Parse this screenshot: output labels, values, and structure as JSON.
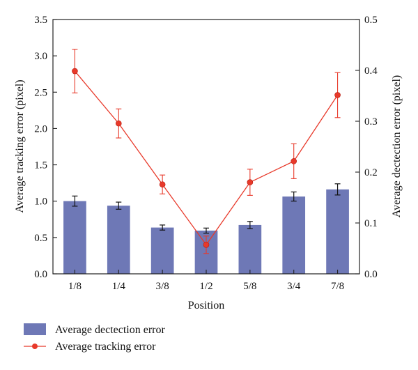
{
  "chart_data": {
    "type": "bar+line",
    "xlabel": "Position",
    "ylabel_left": "Average tracking error (pixel)",
    "ylabel_right": "Average dectection error (pixel)",
    "categories": [
      "1/8",
      "1/4",
      "3/8",
      "1/2",
      "5/8",
      "3/4",
      "7/8"
    ],
    "left_axis": {
      "ylim": [
        0.0,
        3.5
      ],
      "ticks": [
        "0.0",
        "0.5",
        "1.0",
        "1.5",
        "2.0",
        "2.5",
        "3.0",
        "3.5"
      ]
    },
    "right_axis": {
      "ylim": [
        0.0,
        0.5
      ],
      "ticks": [
        "0.0",
        "0.1",
        "0.2",
        "0.3",
        "0.4",
        "0.5"
      ]
    },
    "series": [
      {
        "name": "Average dectection error",
        "kind": "bar",
        "axis": "right",
        "color": "#6e78b6",
        "values": [
          0.143,
          0.134,
          0.091,
          0.085,
          0.096,
          0.152,
          0.166
        ],
        "errors": [
          0.01,
          0.007,
          0.005,
          0.005,
          0.007,
          0.009,
          0.011
        ]
      },
      {
        "name": "Average tracking error",
        "kind": "line",
        "axis": "left",
        "color": "#e8392a",
        "values": [
          2.79,
          2.07,
          1.23,
          0.4,
          1.26,
          1.55,
          2.46
        ],
        "errors": [
          0.3,
          0.2,
          0.13,
          0.12,
          0.18,
          0.24,
          0.31
        ]
      }
    ],
    "grid": false,
    "legend": "bottom-left"
  }
}
